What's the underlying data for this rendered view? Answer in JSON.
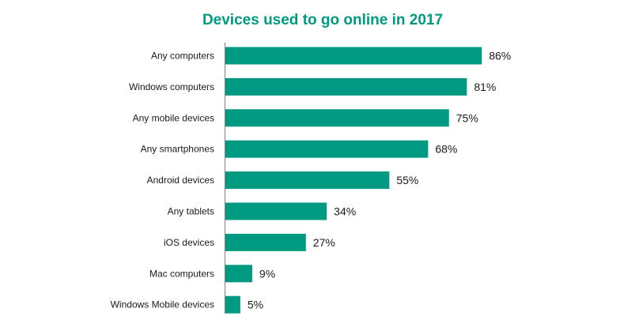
{
  "colors": {
    "bar": "#009982",
    "title": "#009982",
    "axis": "#7f7f7f",
    "text": "#1a1a1a"
  },
  "chart_data": {
    "type": "bar",
    "orientation": "horizontal",
    "title": "Devices used to go online in 2017",
    "xlabel": "",
    "ylabel": "",
    "unit": "%",
    "xlim": [
      0,
      100
    ],
    "grid": false,
    "legend": "none",
    "categories": [
      "Any computers",
      "Windows computers",
      "Any mobile devices",
      "Any smartphones",
      "Android devices",
      "Any tablets",
      "iOS devices",
      "Mac computers",
      "Windows Mobile devices"
    ],
    "values": [
      86,
      81,
      75,
      68,
      55,
      34,
      27,
      9,
      5
    ],
    "value_labels": [
      "86%",
      "81%",
      "75%",
      "68%",
      "55%",
      "34%",
      "27%",
      "9%",
      "5%"
    ]
  }
}
